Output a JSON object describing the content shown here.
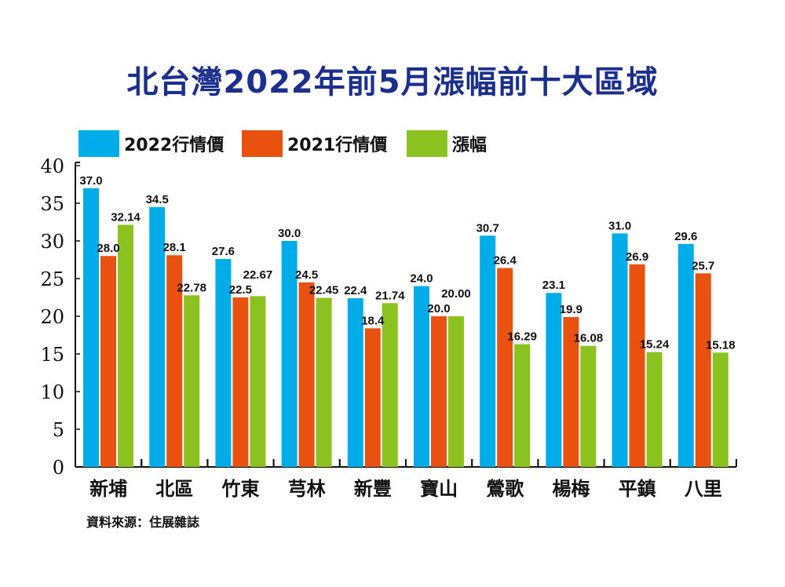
{
  "chart_data": {
    "type": "bar",
    "title": "北台灣2022年前5月漲幅前十大區域",
    "categories": [
      "新埔",
      "北區",
      "竹東",
      "芎林",
      "新豐",
      "寶山",
      "鶯歌",
      "楊梅",
      "平鎮",
      "八里"
    ],
    "series": [
      {
        "name": "2022行情價",
        "color": "#00ade8",
        "values": [
          37.0,
          34.5,
          27.6,
          30.0,
          22.4,
          24.0,
          30.7,
          23.1,
          31.0,
          29.6
        ],
        "labels": [
          "37.0",
          "34.5",
          "27.6",
          "30.0",
          "22.4",
          "24.0",
          "30.7",
          "23.1",
          "31.0",
          "29.6"
        ]
      },
      {
        "name": "2021行情價",
        "color": "#e8510f",
        "values": [
          28.0,
          28.1,
          22.5,
          24.5,
          18.4,
          20.0,
          26.4,
          19.9,
          26.9,
          25.7
        ],
        "labels": [
          "28.0",
          "28.1",
          "22.5",
          "24.5",
          "18.4",
          "20.0",
          "26.4",
          "19.9",
          "26.9",
          "25.7"
        ]
      },
      {
        "name": "漲幅",
        "color": "#8cc21f",
        "values": [
          32.14,
          22.78,
          22.67,
          22.45,
          21.74,
          20.0,
          16.29,
          16.08,
          15.24,
          15.18
        ],
        "labels": [
          "32.14",
          "22.78",
          "22.67",
          "22.45",
          "21.74",
          "20.00",
          "16.29",
          "16.08",
          "15.24",
          "15.18"
        ]
      }
    ],
    "yticks": [
      "0",
      "5",
      "10",
      "15",
      "20",
      "25",
      "30",
      "35",
      "40"
    ],
    "ylim": [
      0,
      40
    ],
    "xlabel": "",
    "ylabel": "",
    "grid": false,
    "legend_position": "top-left"
  },
  "source": "資料來源：住展雜誌"
}
